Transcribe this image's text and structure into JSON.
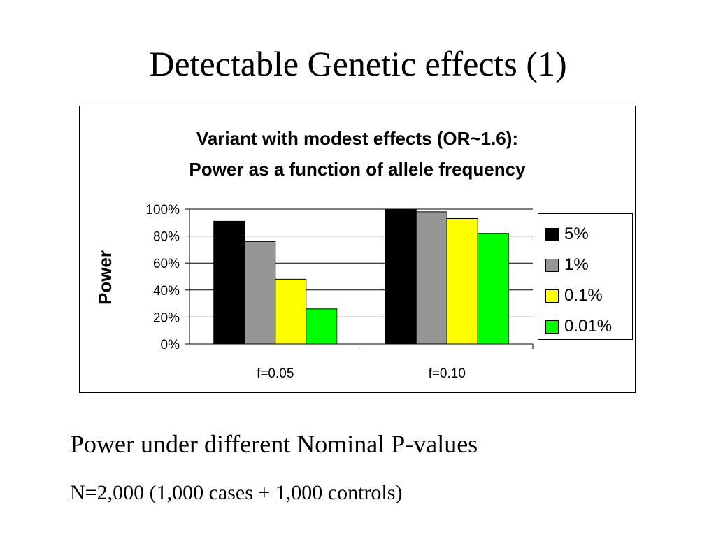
{
  "slide": {
    "title": "Detectable Genetic effects (1)",
    "subtitle": "Power under different Nominal P-values",
    "note": "N=2,000 (1,000 cases + 1,000 controls)"
  },
  "chart_data": {
    "type": "bar",
    "title_lines": [
      "Variant with modest effects (OR~1.6):",
      "Power as a function of allele frequency"
    ],
    "ylabel": "Power",
    "xlabel": "",
    "ylim": [
      0,
      100
    ],
    "yticks": [
      "0%",
      "20%",
      "40%",
      "60%",
      "80%",
      "100%"
    ],
    "categories": [
      "f=0.05",
      "f=0.10"
    ],
    "series": [
      {
        "name": "5%",
        "color": "#000000",
        "values": [
          91,
          100
        ]
      },
      {
        "name": "1%",
        "color": "#969696",
        "values": [
          76,
          98
        ]
      },
      {
        "name": "0.1%",
        "color": "#ffff00",
        "values": [
          48,
          93
        ]
      },
      {
        "name": "0.01%",
        "color": "#00ff00",
        "values": [
          26,
          82
        ]
      }
    ],
    "grid": true,
    "legend_position": "right"
  }
}
